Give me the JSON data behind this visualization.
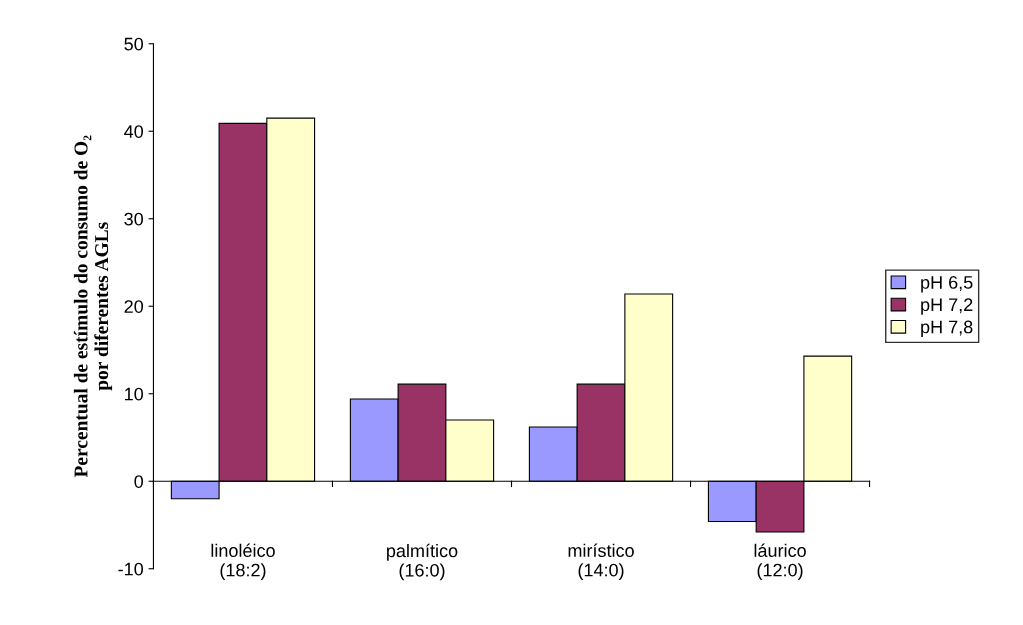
{
  "chart_data": {
    "type": "bar",
    "ylabel": "Percentual de estímulo do consumo de O₂\npor diferentes AGLs",
    "categories": [
      "linoléico\n(18:2)",
      "palmítico\n(16:0)",
      "mirístico\n(14:0)",
      "láurico\n(12:0)"
    ],
    "series": [
      {
        "name": "pH 6,5",
        "color": "#9999ff",
        "values": [
          -2.0,
          9.4,
          6.2,
          -4.6
        ]
      },
      {
        "name": "pH 7,2",
        "color": "#993366",
        "values": [
          40.9,
          11.1,
          11.1,
          -5.8
        ]
      },
      {
        "name": "pH 7,8",
        "color": "#ffffcc",
        "values": [
          41.5,
          7.0,
          21.4,
          14.3
        ]
      }
    ],
    "ylim": [
      -10,
      50
    ],
    "yticks": [
      -10,
      0,
      10,
      20,
      30,
      40,
      50
    ],
    "legend": "right"
  }
}
